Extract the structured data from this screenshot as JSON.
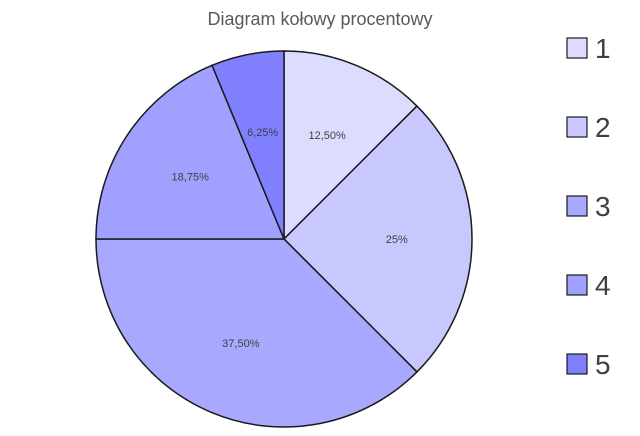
{
  "chart_data": {
    "type": "pie",
    "title": "Diagram kołowy procentowy",
    "categories": [
      "1",
      "2",
      "3",
      "4",
      "5"
    ],
    "values": [
      12.5,
      25,
      37.5,
      18.75,
      6.25
    ],
    "data_labels": [
      "12,50%",
      "25%",
      "37,50%",
      "18,75%",
      "6,25%"
    ],
    "legend_labels": [
      "1",
      "2",
      "3",
      "4",
      "5"
    ],
    "colors": [
      "#dcdcff",
      "#c8c8ff",
      "#a8a8ff",
      "#a0a0ff",
      "#8080ff"
    ],
    "stroke": "#1a1a1a",
    "legend_position": "right",
    "start_angle": "top",
    "direction": "clockwise"
  }
}
